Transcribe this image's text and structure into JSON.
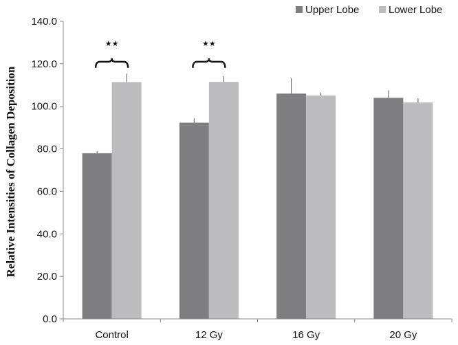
{
  "chart_data": {
    "type": "bar",
    "title": "",
    "xlabel": "",
    "ylabel": "Relative Intensities of Collagen Deposition",
    "ylim": [
      0,
      140
    ],
    "yticks": [
      "0.0",
      "20.0",
      "40.0",
      "60.0",
      "80.0",
      "100.0",
      "120.0",
      "140.0"
    ],
    "categories": [
      "Control",
      "12 Gy",
      "16 Gy",
      "20 Gy"
    ],
    "series": [
      {
        "name": "Upper Lobe",
        "color": "#7f7f81",
        "values": [
          77.9,
          92.3,
          106.0,
          104.0
        ],
        "errors": [
          1.0,
          2.0,
          7.3,
          3.5
        ]
      },
      {
        "name": "Lower Lobe",
        "color": "#bcbcbe",
        "values": [
          111.4,
          111.5,
          105.1,
          101.8
        ],
        "errors": [
          4.0,
          2.7,
          1.4,
          2.0
        ]
      }
    ],
    "legend_position": "top-right",
    "grid": false,
    "significance": [
      {
        "category": "Control",
        "label": "★★"
      },
      {
        "category": "12 Gy",
        "label": "★★"
      }
    ]
  }
}
